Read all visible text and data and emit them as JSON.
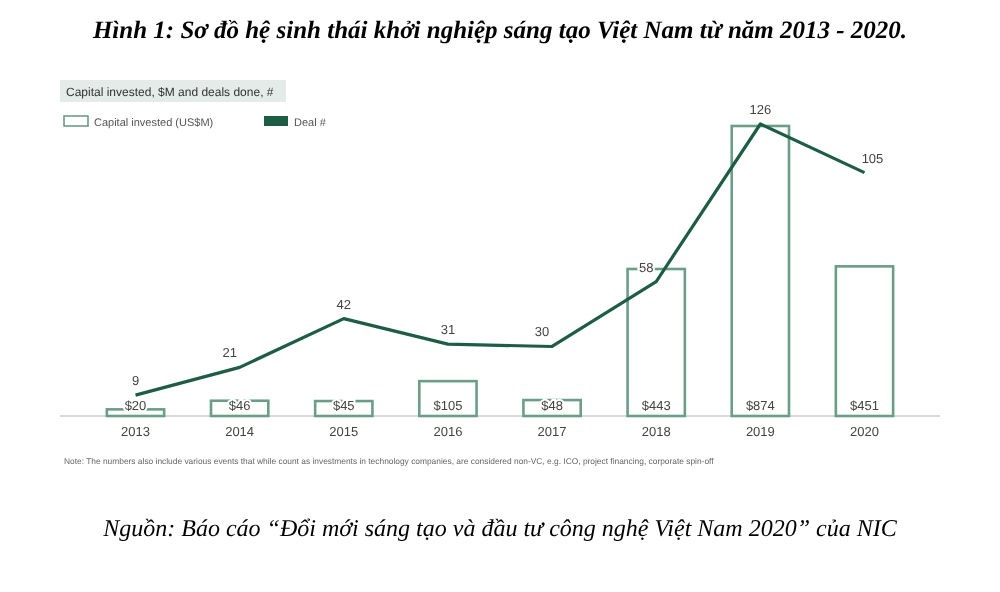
{
  "chart_data": {
    "type": "bar",
    "title": "Hình 1: Sơ đồ hệ sinh thái khởi nghiệp sáng tạo Việt Nam từ năm 2013 - 2020.",
    "subtitle": "Capital invested, $M and deals done, #",
    "categories": [
      "2013",
      "2014",
      "2015",
      "2016",
      "2017",
      "2018",
      "2019",
      "2020"
    ],
    "series": [
      {
        "name": "Capital invested (US$M)",
        "color": "#6a9e86",
        "values": [
          20,
          46,
          45,
          105,
          48,
          443,
          874,
          451
        ],
        "value_labels": [
          "$20",
          "$46",
          "$45",
          "$105",
          "$48",
          "$443",
          "$874",
          "$451"
        ]
      },
      {
        "name": "Deal #",
        "type": "line",
        "axis": "y2",
        "color": "#1f5c45",
        "values": [
          9,
          21,
          42,
          31,
          30,
          58,
          126,
          105
        ]
      }
    ],
    "ylim": [
      0,
      880
    ],
    "y2lim": [
      0,
      126
    ],
    "tick_labels": "x",
    "data_labels": true,
    "legend": "top left",
    "marker": "none",
    "line_style": "solid",
    "annotations": [
      "Note: The numbers also include various events that while count as investments in technology companies, are considered non-VC, e.g. ICO, project financing, corporate spin-off",
      "Nguồn: Báo cáo “Đổi mới sáng tạo và đầu tư công nghệ Việt Nam 2020” của NIC"
    ]
  }
}
